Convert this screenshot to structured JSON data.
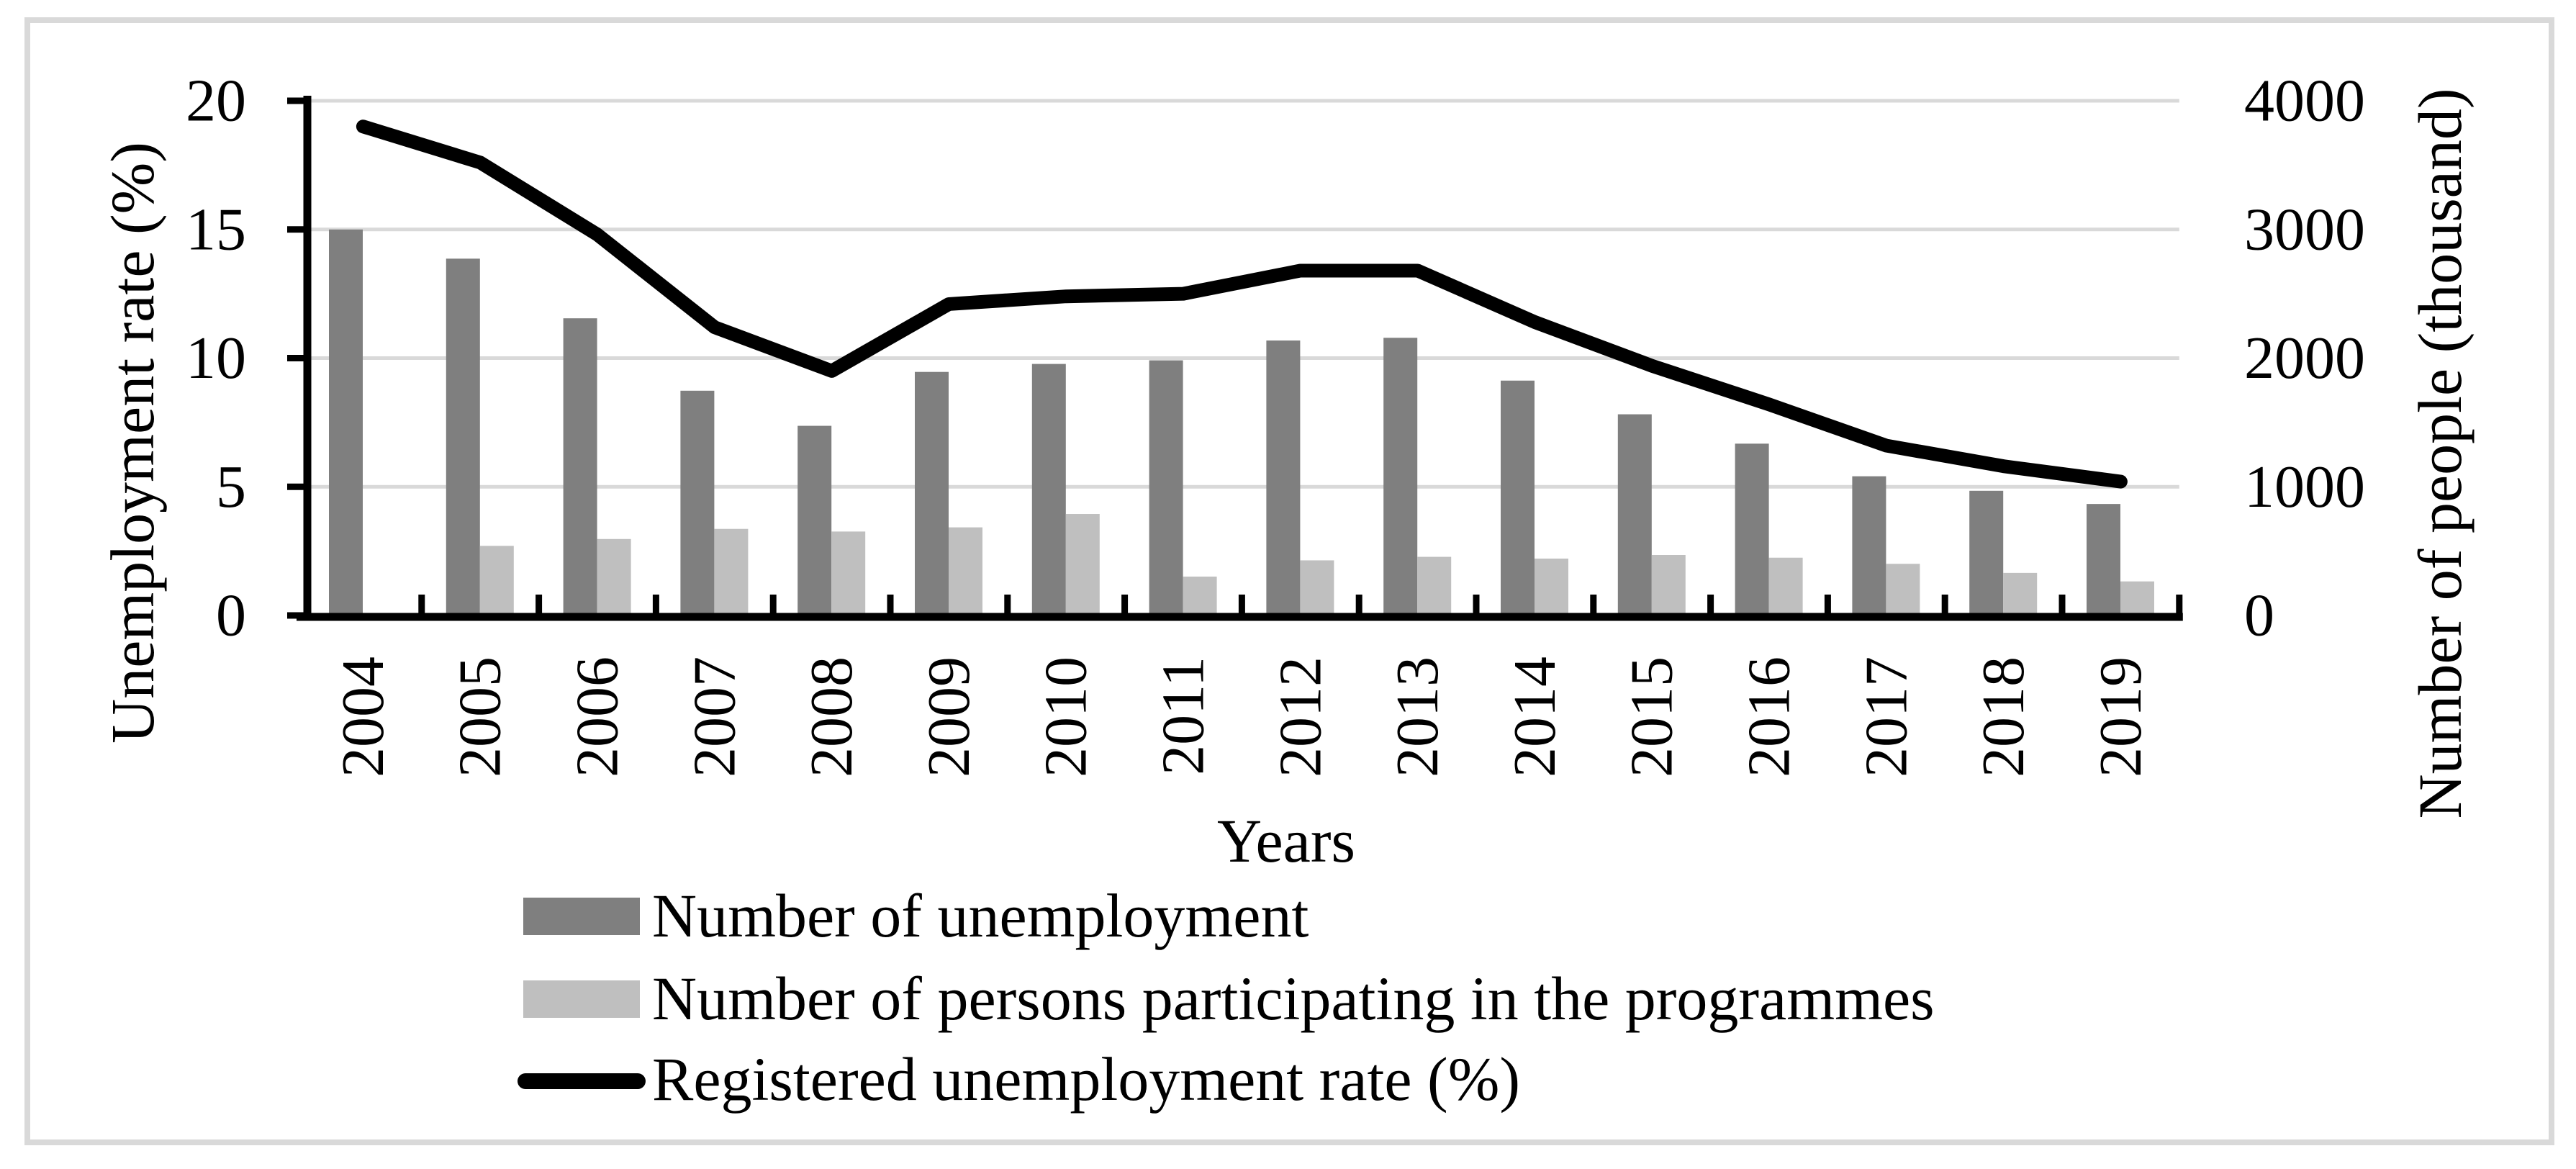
{
  "chart_data": {
    "type": "bar+line",
    "title": "",
    "categories": [
      "2004",
      "2005",
      "2006",
      "2007",
      "2008",
      "2009",
      "2010",
      "2011",
      "2012",
      "2013",
      "2014",
      "2015",
      "2016",
      "2017",
      "2018",
      "2019"
    ],
    "x_axis": {
      "title": "Years"
    },
    "left_axis": {
      "title": "Unemployment rate (%)",
      "ticks": [
        0,
        5,
        10,
        15,
        20
      ],
      "range": [
        0,
        20
      ]
    },
    "right_axis": {
      "title": "Number of people (thousand)",
      "ticks": [
        0,
        1000,
        2000,
        3000,
        4000
      ],
      "range": [
        0,
        4000
      ]
    },
    "grid": true,
    "legend_position": "bottom-left",
    "series": [
      {
        "name": "Number of unemployment",
        "type": "bar",
        "axis": "right",
        "color": "#7f7f7f",
        "values": [
          2999.6,
          2773.0,
          2309.4,
          1746.6,
          1473.8,
          1892.7,
          1954.7,
          1982.7,
          2136.8,
          2157.9,
          1825.2,
          1563.3,
          1335.2,
          1081.7,
          968.9,
          866.4
        ]
      },
      {
        "name": "Number of persons participating in the programmes",
        "type": "bar",
        "axis": "right",
        "color": "#bfbfbf",
        "values": [
          null,
          540.8,
          594.1,
          672.8,
          652.3,
          684.6,
          788.7,
          301.9,
          428.3,
          455.6,
          441.9,
          469.9,
          449.0,
          401.1,
          330.9,
          264.6
        ]
      },
      {
        "name": "Registered unemployment rate (%)",
        "type": "line",
        "axis": "left",
        "color": "#000000",
        "values": [
          19.0,
          17.6,
          14.8,
          11.2,
          9.5,
          12.1,
          12.4,
          12.5,
          13.4,
          13.4,
          11.4,
          9.7,
          8.2,
          6.6,
          5.8,
          5.2
        ]
      }
    ]
  },
  "colors": {
    "grid": "#d9d9d9",
    "frame": "#d9d9d9",
    "axis": "#000000",
    "text": "#000000"
  }
}
